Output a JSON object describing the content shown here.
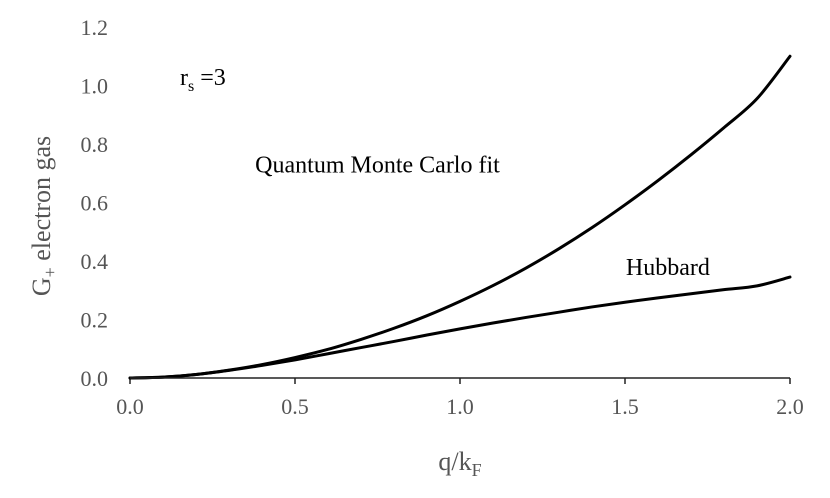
{
  "chart_data": {
    "type": "line",
    "title": "",
    "xlabel": "q/k",
    "xlabel_sub": "F",
    "ylabel_prefix": "G",
    "ylabel_sub": "+",
    "ylabel_suffix": " electron gas",
    "xlim": [
      0,
      2
    ],
    "ylim": [
      0,
      1.2
    ],
    "grid": false,
    "x_ticks": [
      "0.0",
      "0.5",
      "1.0",
      "1.5",
      "2.0"
    ],
    "y_ticks": [
      "0.0",
      "0.2",
      "0.4",
      "0.6",
      "0.8",
      "1.0",
      "1.2"
    ],
    "annotation_param": {
      "main": "r",
      "sub": "s",
      "rest": " =3"
    },
    "series": [
      {
        "name": "Quantum Monte Carlo fit",
        "x": [
          0,
          0.1,
          0.2,
          0.3,
          0.4,
          0.5,
          0.6,
          0.7,
          0.8,
          0.9,
          1.0,
          1.1,
          1.2,
          1.3,
          1.4,
          1.5,
          1.6,
          1.7,
          1.8,
          1.9,
          2.0
        ],
        "y": [
          0,
          0.003,
          0.012,
          0.027,
          0.046,
          0.07,
          0.098,
          0.132,
          0.17,
          0.213,
          0.262,
          0.316,
          0.376,
          0.442,
          0.514,
          0.592,
          0.675,
          0.763,
          0.856,
          0.955,
          1.1
        ]
      },
      {
        "name": "Hubbard",
        "x": [
          0,
          0.1,
          0.2,
          0.3,
          0.4,
          0.5,
          0.6,
          0.7,
          0.8,
          0.9,
          1.0,
          1.1,
          1.2,
          1.3,
          1.4,
          1.5,
          1.6,
          1.7,
          1.8,
          1.9,
          2.0
        ],
        "y": [
          0,
          0.003,
          0.012,
          0.026,
          0.043,
          0.062,
          0.083,
          0.104,
          0.125,
          0.147,
          0.168,
          0.188,
          0.207,
          0.225,
          0.243,
          0.259,
          0.274,
          0.288,
          0.302,
          0.315,
          0.345
        ]
      }
    ],
    "labels": [
      {
        "text": "Quantum Monte Carlo fit",
        "x": 0.75,
        "y": 0.73
      },
      {
        "text": "Hubbard",
        "x": 1.63,
        "y": 0.38
      }
    ]
  }
}
